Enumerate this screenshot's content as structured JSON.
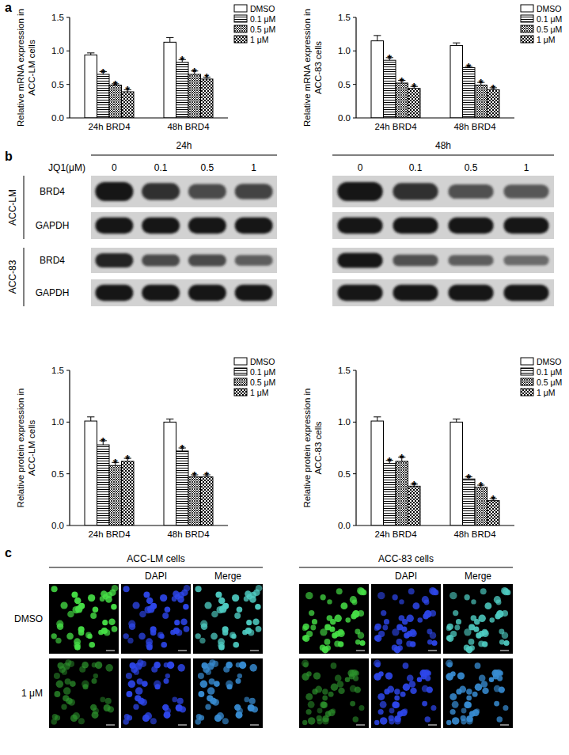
{
  "chart_data": [
    {
      "type": "bar",
      "y_label": [
        "Relative mRNA expression in",
        "ACC-LM cells"
      ],
      "categories": [
        "24h BRD4",
        "48h BRD4"
      ],
      "series": [
        {
          "name": "DMSO",
          "color": "#000000",
          "values": [
            0.94,
            1.13
          ],
          "errors": [
            0.03,
            0.07
          ]
        },
        {
          "name": "0.1 μM",
          "color": "#000000",
          "values": [
            0.65,
            0.83
          ],
          "errors": [
            0.04,
            0.04
          ],
          "annotations": [
            "*",
            "*"
          ]
        },
        {
          "name": "0.5 μM",
          "color": "#000000",
          "values": [
            0.49,
            0.65
          ],
          "errors": [
            0.02,
            0.05
          ],
          "annotations": [
            "*",
            "*"
          ]
        },
        {
          "name": "1 μM",
          "color": "#000000",
          "values": [
            0.39,
            0.58
          ],
          "errors": [
            0.03,
            0.03
          ],
          "annotations": [
            "*",
            "*"
          ]
        }
      ],
      "ylim": [
        0,
        1.5
      ],
      "yticks": [
        {
          "value": 0,
          "label": "0.0"
        },
        {
          "value": 0.5,
          "label": "0.5"
        },
        {
          "value": 1,
          "label": "1.0"
        },
        {
          "value": 1.5,
          "label": "1.5"
        }
      ],
      "grid": false,
      "legend": "right"
    },
    {
      "type": "bar",
      "y_label": [
        "Relative mRNA expression in",
        "ACC-83 cells"
      ],
      "categories": [
        "24h BRD4",
        "48h BRD4"
      ],
      "series": [
        {
          "name": "DMSO",
          "color": "#000000",
          "values": [
            1.15,
            1.08
          ],
          "errors": [
            0.08,
            0.04
          ]
        },
        {
          "name": "0.1 μM",
          "color": "#000000",
          "values": [
            0.86,
            0.75
          ],
          "errors": [
            0.04,
            0.02
          ],
          "annotations": [
            "*",
            "*"
          ]
        },
        {
          "name": "0.5 μM",
          "color": "#000000",
          "values": [
            0.52,
            0.49
          ],
          "errors": [
            0.04,
            0.04
          ],
          "annotations": [
            "*",
            "*"
          ]
        },
        {
          "name": "1 μM",
          "color": "#000000",
          "values": [
            0.44,
            0.42
          ],
          "errors": [
            0.03,
            0.03
          ],
          "annotations": [
            "*",
            "*"
          ]
        }
      ],
      "ylim": [
        0,
        1.5
      ],
      "yticks": [
        {
          "value": 0,
          "label": "0.0"
        },
        {
          "value": 0.5,
          "label": "0.5"
        },
        {
          "value": 1,
          "label": "1.0"
        },
        {
          "value": 1.5,
          "label": "1.5"
        }
      ],
      "grid": false,
      "legend": "right"
    },
    {
      "type": "bar",
      "y_label": [
        "Relative protein expression in",
        "ACC-LM cells"
      ],
      "categories": [
        "24h BRD4",
        "48h BRD4"
      ],
      "series": [
        {
          "name": "DMSO",
          "color": "#000000",
          "values": [
            1.01,
            1.0
          ],
          "errors": [
            0.04,
            0.03
          ]
        },
        {
          "name": "0.1 μM",
          "color": "#000000",
          "values": [
            0.78,
            0.72
          ],
          "errors": [
            0.04,
            0.03
          ],
          "annotations": [
            "*",
            "*"
          ]
        },
        {
          "name": "0.5 μM",
          "color": "#000000",
          "values": [
            0.58,
            0.47
          ],
          "errors": [
            0.03,
            0.02
          ],
          "annotations": [
            "*",
            "*"
          ]
        },
        {
          "name": "1 μM",
          "color": "#000000",
          "values": [
            0.62,
            0.47
          ],
          "errors": [
            0.03,
            0.02
          ],
          "annotations": [
            "*",
            "*"
          ]
        }
      ],
      "ylim": [
        0,
        1.5
      ],
      "yticks": [
        {
          "value": 0,
          "label": "0.0"
        },
        {
          "value": 0.5,
          "label": "0.5"
        },
        {
          "value": 1,
          "label": "1.0"
        },
        {
          "value": 1.5,
          "label": "1.5"
        }
      ],
      "grid": false,
      "legend": "right"
    },
    {
      "type": "bar",
      "y_label": [
        "Relative protein expression in",
        "ACC-83 cells"
      ],
      "categories": [
        "24h BRD4",
        "48h BRD4"
      ],
      "series": [
        {
          "name": "DMSO",
          "color": "#000000",
          "values": [
            1.01,
            1.0
          ],
          "errors": [
            0.04,
            0.03
          ]
        },
        {
          "name": "0.1 μM",
          "color": "#000000",
          "values": [
            0.6,
            0.45
          ],
          "errors": [
            0.03,
            0.02
          ],
          "annotations": [
            "*",
            "*"
          ]
        },
        {
          "name": "0.5 μM",
          "color": "#000000",
          "values": [
            0.62,
            0.37
          ],
          "errors": [
            0.04,
            0.02
          ],
          "annotations": [
            "*",
            "*"
          ]
        },
        {
          "name": "1 μM",
          "color": "#000000",
          "values": [
            0.38,
            0.24
          ],
          "errors": [
            0.02,
            0.02
          ],
          "annotations": [
            "*",
            "*"
          ]
        }
      ],
      "ylim": [
        0,
        1.5
      ],
      "yticks": [
        {
          "value": 0,
          "label": "0.0"
        },
        {
          "value": 0.5,
          "label": "0.5"
        },
        {
          "value": 1,
          "label": "1.0"
        },
        {
          "value": 1.5,
          "label": "1.5"
        }
      ],
      "grid": false,
      "legend": "right"
    }
  ],
  "panel_labels": [
    "a",
    "b",
    "c"
  ],
  "blot": {
    "time_labels": [
      "24h",
      "48h"
    ],
    "treatment_label": "JQ1(μM)",
    "doses": [
      "0",
      "0.1",
      "0.5",
      "1"
    ],
    "cell_lines": [
      {
        "name": "ACC-LM",
        "rows": [
          {
            "protein": "BRD4",
            "intensity": [
              [
                1.0,
                0.8,
                0.6,
                0.65
              ],
              [
                1.0,
                0.8,
                0.55,
                0.5
              ]
            ]
          },
          {
            "protein": "GAPDH",
            "intensity": [
              [
                1.0,
                1.0,
                1.0,
                1.0
              ],
              [
                1.0,
                1.0,
                1.0,
                1.0
              ]
            ]
          }
        ]
      },
      {
        "name": "ACC-83",
        "rows": [
          {
            "protein": "BRD4",
            "intensity": [
              [
                0.9,
                0.6,
                0.6,
                0.45
              ],
              [
                1.0,
                0.55,
                0.45,
                0.35
              ]
            ]
          },
          {
            "protein": "GAPDH",
            "intensity": [
              [
                1.0,
                1.0,
                1.0,
                1.0
              ],
              [
                1.0,
                1.0,
                1.0,
                1.0
              ]
            ]
          }
        ]
      }
    ]
  },
  "microscopy": {
    "groups": [
      "ACC-LM cells",
      "ACC-83 cells"
    ],
    "channels": [
      null,
      "DAPI",
      "Merge"
    ],
    "conditions": [
      "DMSO",
      "1 μM"
    ]
  }
}
